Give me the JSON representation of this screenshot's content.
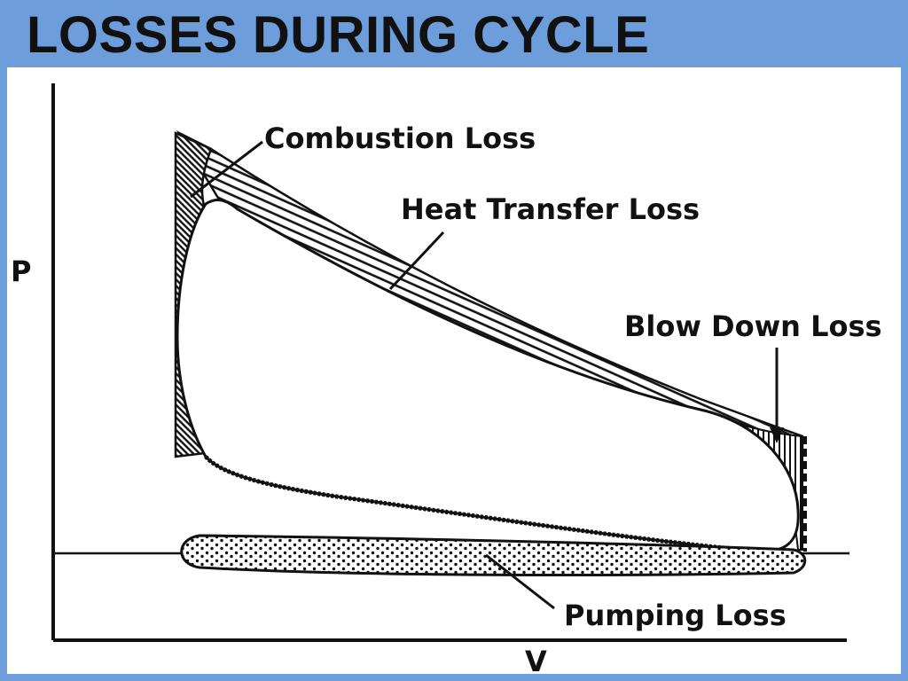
{
  "slide": {
    "title": "LOSSES DURING CYCLE",
    "frame_color": "#6d9edb"
  },
  "diagram": {
    "axis_y_label": "P",
    "axis_x_label": "V",
    "labels": {
      "combustion": "Combustion Loss",
      "heat_transfer": "Heat Transfer Loss",
      "blow_down": "Blow Down Loss",
      "pumping": "Pumping Loss"
    }
  }
}
